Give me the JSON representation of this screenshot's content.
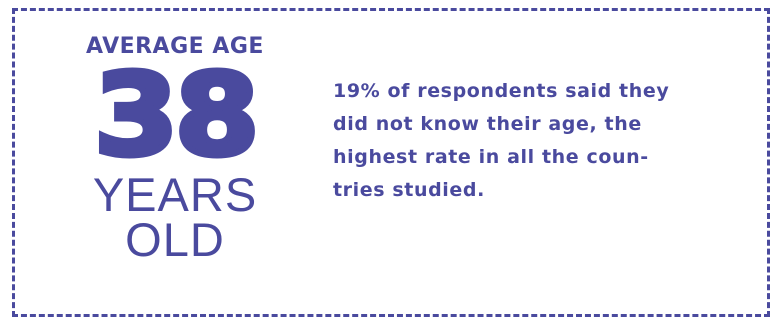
{
  "stat": {
    "label": "AVERAGE AGE",
    "value": "38",
    "unit_line1": "YEARS",
    "unit_line2": "OLD"
  },
  "note": {
    "line1": "19% of respondents said they",
    "line2": "did not know their age, the",
    "line3": "highest rate in all the coun-",
    "line4": "tries studied."
  },
  "colors": {
    "accent": "#4a4a9e",
    "background": "#ffffff"
  }
}
